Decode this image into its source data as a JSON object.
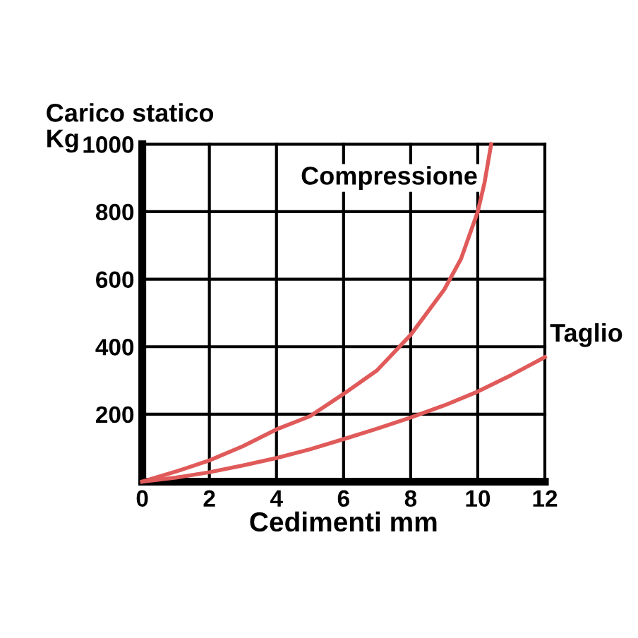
{
  "chart_data": {
    "type": "line",
    "xlabel": "Cedimenti mm",
    "ylabel": "Carico statico\nKg",
    "xlim": [
      0,
      12
    ],
    "ylim": [
      0,
      1000
    ],
    "xticks": [
      0,
      2,
      4,
      6,
      8,
      10,
      12
    ],
    "yticks": [
      {
        "value": 0,
        "label": null
      },
      200,
      400,
      600,
      800,
      1000
    ],
    "grid": true,
    "legend": false,
    "marker": "none",
    "line_style": "solid",
    "series": [
      {
        "name": "Compressione",
        "color": "#e05a5a",
        "x": [
          0,
          1,
          2,
          3,
          4,
          5,
          6,
          7,
          8,
          9,
          9.5,
          10,
          10.2,
          10.4
        ],
        "values": [
          0,
          30,
          63,
          105,
          155,
          194,
          260,
          330,
          435,
          569,
          660,
          800,
          885,
          1000
        ]
      },
      {
        "name": "Taglio",
        "color": "#e05a5a",
        "x": [
          0,
          1,
          2,
          3,
          4,
          5,
          6,
          7,
          8,
          9,
          10,
          11,
          12
        ],
        "values": [
          0,
          12,
          28,
          48,
          70,
          96,
          126,
          157,
          190,
          226,
          267,
          316,
          369
        ]
      }
    ]
  }
}
